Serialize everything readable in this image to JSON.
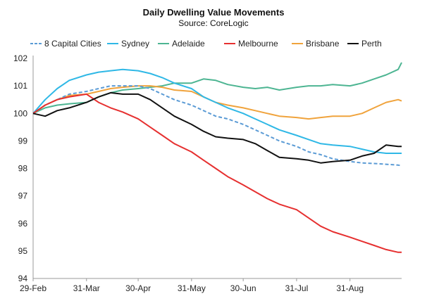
{
  "chart_data": {
    "type": "line",
    "title": "Daily Dwelling Value Movements",
    "subtitle": "Source: CoreLogic",
    "xlabel": "",
    "ylabel": "",
    "x_ticks": [
      "29-Feb",
      "31-Mar",
      "30-Apr",
      "31-May",
      "30-Jun",
      "31-Jul",
      "31-Aug"
    ],
    "x_range": [
      "2020-02-29",
      "2020-09-30"
    ],
    "ylim": [
      94,
      102
    ],
    "y_ticks": [
      94,
      95,
      96,
      97,
      98,
      99,
      100,
      101,
      102
    ],
    "grid": false,
    "legend_position": "top",
    "x": [
      "2020-02-29",
      "2020-03-07",
      "2020-03-14",
      "2020-03-21",
      "2020-03-31",
      "2020-04-07",
      "2020-04-14",
      "2020-04-21",
      "2020-04-30",
      "2020-05-07",
      "2020-05-14",
      "2020-05-21",
      "2020-05-31",
      "2020-06-07",
      "2020-06-14",
      "2020-06-21",
      "2020-06-30",
      "2020-07-07",
      "2020-07-14",
      "2020-07-21",
      "2020-07-31",
      "2020-08-07",
      "2020-08-14",
      "2020-08-21",
      "2020-08-31",
      "2020-09-07",
      "2020-09-14",
      "2020-09-21",
      "2020-09-28",
      "2020-09-30"
    ],
    "series": [
      {
        "name": "8 Capital Cities",
        "color": "#5b9bd5",
        "dashed": true,
        "values": [
          100.0,
          100.3,
          100.5,
          100.7,
          100.8,
          100.9,
          101.0,
          101.0,
          101.0,
          100.9,
          100.7,
          100.5,
          100.3,
          100.1,
          99.9,
          99.8,
          99.6,
          99.4,
          99.2,
          99.0,
          98.8,
          98.6,
          98.5,
          98.35,
          98.25,
          98.2,
          98.18,
          98.15,
          98.12,
          98.1
        ]
      },
      {
        "name": "Sydney",
        "color": "#2fb8e6",
        "values": [
          100.0,
          100.5,
          100.9,
          101.2,
          101.4,
          101.5,
          101.55,
          101.6,
          101.55,
          101.45,
          101.3,
          101.1,
          100.9,
          100.6,
          100.4,
          100.2,
          100.0,
          99.8,
          99.6,
          99.4,
          99.2,
          99.05,
          98.9,
          98.85,
          98.8,
          98.7,
          98.6,
          98.55,
          98.55,
          98.55
        ]
      },
      {
        "name": "Adelaide",
        "color": "#4db592",
        "values": [
          100.0,
          100.2,
          100.3,
          100.35,
          100.4,
          100.6,
          100.75,
          100.85,
          100.9,
          100.95,
          101.0,
          101.1,
          101.1,
          101.25,
          101.2,
          101.05,
          100.95,
          100.9,
          100.95,
          100.85,
          100.95,
          101.0,
          101.0,
          101.05,
          101.0,
          101.1,
          101.25,
          101.4,
          101.6,
          101.85
        ]
      },
      {
        "name": "Melbourne",
        "color": "#e63030",
        "values": [
          100.0,
          100.3,
          100.5,
          100.6,
          100.7,
          100.4,
          100.2,
          100.05,
          99.8,
          99.5,
          99.2,
          98.9,
          98.6,
          98.3,
          98.0,
          97.7,
          97.4,
          97.15,
          96.9,
          96.7,
          96.5,
          96.2,
          95.9,
          95.7,
          95.5,
          95.35,
          95.2,
          95.05,
          94.95,
          94.95
        ]
      },
      {
        "name": "Brisbane",
        "color": "#f0a33c",
        "values": [
          100.0,
          100.3,
          100.5,
          100.65,
          100.7,
          100.8,
          100.9,
          100.95,
          101.0,
          101.0,
          100.95,
          100.85,
          100.8,
          100.6,
          100.4,
          100.3,
          100.2,
          100.1,
          100.0,
          99.9,
          99.85,
          99.8,
          99.85,
          99.9,
          99.9,
          100.0,
          100.2,
          100.4,
          100.5,
          100.45
        ]
      },
      {
        "name": "Perth",
        "color": "#111111",
        "values": [
          100.0,
          99.9,
          100.1,
          100.2,
          100.4,
          100.6,
          100.75,
          100.7,
          100.7,
          100.5,
          100.2,
          99.9,
          99.6,
          99.35,
          99.15,
          99.1,
          99.05,
          98.9,
          98.65,
          98.4,
          98.35,
          98.3,
          98.2,
          98.25,
          98.3,
          98.45,
          98.55,
          98.85,
          98.8,
          98.8
        ]
      }
    ]
  }
}
